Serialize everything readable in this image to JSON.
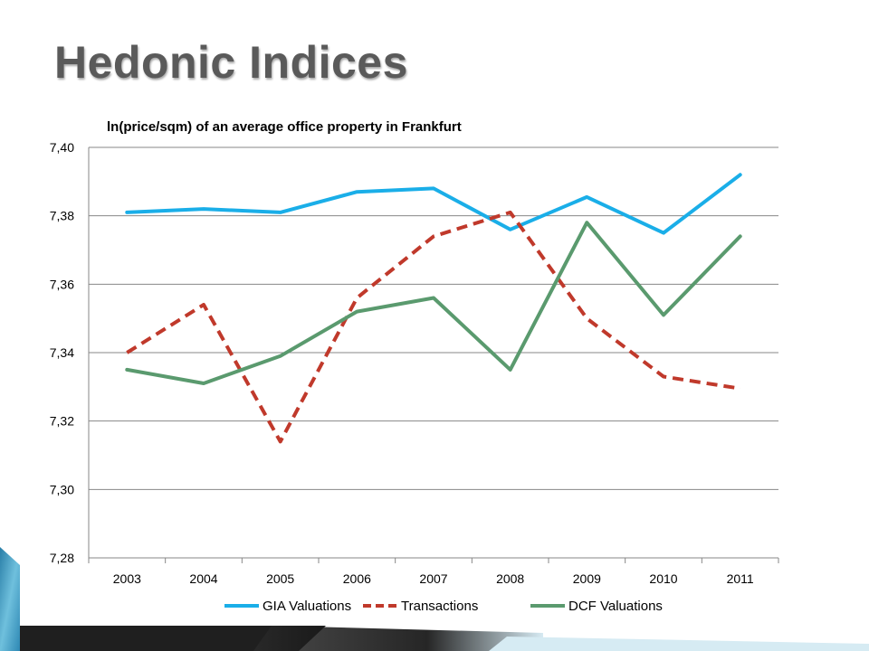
{
  "slide": {
    "title": "Hedonic Indices"
  },
  "colors": {
    "gia": "#1aaee8",
    "transactions": "#c0392b",
    "dcf": "#5a9a6e",
    "grid": "#878787"
  },
  "chart_data": {
    "type": "line",
    "title": "ln(price/sqm) of an average office property in Frankfurt",
    "xlabel": "",
    "ylabel": "",
    "categories": [
      "2003",
      "2004",
      "2005",
      "2006",
      "2007",
      "2008",
      "2009",
      "2010",
      "2011"
    ],
    "ylim": [
      7.28,
      7.4
    ],
    "ytick_labels": [
      "7,28",
      "7,30",
      "7,32",
      "7,34",
      "7,36",
      "7,38",
      "7,40"
    ],
    "grid": true,
    "legend_position": "bottom",
    "series": [
      {
        "name": "GIA Valuations",
        "style": "solid",
        "color": "#1aaee8",
        "values": [
          7.381,
          7.382,
          7.381,
          7.387,
          7.388,
          7.376,
          7.3855,
          7.375,
          7.392
        ]
      },
      {
        "name": "Transactions",
        "style": "dashed",
        "color": "#c0392b",
        "values": [
          7.34,
          7.354,
          7.314,
          7.356,
          7.374,
          7.381,
          7.35,
          7.333,
          7.3295
        ]
      },
      {
        "name": "DCF Valuations",
        "style": "solid",
        "color": "#5a9a6e",
        "values": [
          7.335,
          7.331,
          7.339,
          7.352,
          7.356,
          7.335,
          7.378,
          7.351,
          7.374
        ]
      }
    ]
  }
}
